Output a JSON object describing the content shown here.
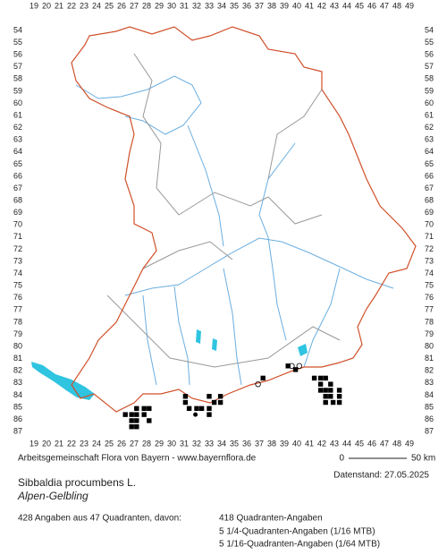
{
  "map": {
    "columns": [
      19,
      20,
      21,
      22,
      23,
      24,
      25,
      26,
      27,
      28,
      29,
      30,
      31,
      32,
      33,
      34,
      35,
      36,
      37,
      38,
      39,
      40,
      41,
      42,
      43,
      44,
      45,
      46,
      47,
      48,
      49
    ],
    "rows": [
      54,
      55,
      56,
      57,
      58,
      59,
      60,
      61,
      62,
      63,
      64,
      65,
      66,
      67,
      68,
      69,
      70,
      71,
      72,
      73,
      74,
      75,
      76,
      77,
      78,
      79,
      80,
      81,
      82,
      83,
      84,
      85,
      86,
      87
    ],
    "records": [
      {
        "col": 26.3,
        "row": 85.6,
        "symbol": "square"
      },
      {
        "col": 26.8,
        "row": 85.6,
        "symbol": "square"
      },
      {
        "col": 27.2,
        "row": 85.1,
        "symbol": "square"
      },
      {
        "col": 27.8,
        "row": 85.1,
        "symbol": "square"
      },
      {
        "col": 28.2,
        "row": 85.1,
        "symbol": "square"
      },
      {
        "col": 27.2,
        "row": 85.6,
        "symbol": "square"
      },
      {
        "col": 27.8,
        "row": 85.6,
        "symbol": "square"
      },
      {
        "col": 28.2,
        "row": 86.1,
        "symbol": "square"
      },
      {
        "col": 26.8,
        "row": 86.1,
        "symbol": "square"
      },
      {
        "col": 27.2,
        "row": 86.1,
        "symbol": "square"
      },
      {
        "col": 26.8,
        "row": 86.6,
        "symbol": "square"
      },
      {
        "col": 27.2,
        "row": 86.6,
        "symbol": "square"
      },
      {
        "col": 31.1,
        "row": 84.1,
        "symbol": "square"
      },
      {
        "col": 31.1,
        "row": 84.6,
        "symbol": "square"
      },
      {
        "col": 31.4,
        "row": 85.1,
        "symbol": "square"
      },
      {
        "col": 32.0,
        "row": 85.1,
        "symbol": "square"
      },
      {
        "col": 32.4,
        "row": 85.1,
        "symbol": "square"
      },
      {
        "col": 33.0,
        "row": 85.1,
        "symbol": "square"
      },
      {
        "col": 33.0,
        "row": 85.6,
        "symbol": "square"
      },
      {
        "col": 33.0,
        "row": 84.1,
        "symbol": "square"
      },
      {
        "col": 33.9,
        "row": 84.1,
        "symbol": "square"
      },
      {
        "col": 33.9,
        "row": 84.6,
        "symbol": "square"
      },
      {
        "col": 33.4,
        "row": 84.6,
        "symbol": "square"
      },
      {
        "col": 31.9,
        "row": 85.6,
        "symbol": "dot"
      },
      {
        "col": 37.3,
        "row": 82.6,
        "symbol": "square"
      },
      {
        "col": 36.9,
        "row": 83.1,
        "symbol": "circle"
      },
      {
        "col": 39.3,
        "row": 81.6,
        "symbol": "square"
      },
      {
        "col": 39.9,
        "row": 81.9,
        "symbol": "square"
      },
      {
        "col": 39.6,
        "row": 81.6,
        "symbol": "circle"
      },
      {
        "col": 40.2,
        "row": 81.6,
        "symbol": "circle"
      },
      {
        "col": 41.4,
        "row": 82.6,
        "symbol": "square"
      },
      {
        "col": 41.9,
        "row": 82.6,
        "symbol": "square"
      },
      {
        "col": 42.3,
        "row": 82.6,
        "symbol": "square"
      },
      {
        "col": 41.9,
        "row": 83.1,
        "symbol": "square"
      },
      {
        "col": 42.7,
        "row": 83.1,
        "symbol": "square"
      },
      {
        "col": 42.3,
        "row": 83.6,
        "symbol": "square"
      },
      {
        "col": 42.7,
        "row": 83.6,
        "symbol": "square"
      },
      {
        "col": 41.9,
        "row": 83.6,
        "symbol": "square"
      },
      {
        "col": 42.3,
        "row": 84.1,
        "symbol": "square"
      },
      {
        "col": 42.7,
        "row": 84.1,
        "symbol": "square"
      },
      {
        "col": 43.4,
        "row": 83.6,
        "symbol": "square"
      },
      {
        "col": 43.4,
        "row": 84.1,
        "symbol": "square"
      },
      {
        "col": 42.3,
        "row": 84.6,
        "symbol": "square"
      },
      {
        "col": 42.9,
        "row": 84.6,
        "symbol": "square"
      },
      {
        "col": 43.4,
        "row": 84.6,
        "symbol": "square"
      }
    ]
  },
  "footer": {
    "credit": "Arbeitsgemeinschaft Flora von Bayern - www.bayernflora.de",
    "scale_start": "0",
    "scale_end": "50 km",
    "date": "Datenstand: 27.05.2025",
    "species": "Sibbaldia procumbens L.",
    "common_name": "Alpen-Gelbling",
    "summary": "428 Angaben aus 47 Quadranten, davon:",
    "details": [
      "418 Quadranten-Angaben",
      "5 1/4-Quadranten-Angaben (1/16 MTB)",
      "5 1/16-Quadranten-Angaben (1/64 MTB)"
    ]
  }
}
